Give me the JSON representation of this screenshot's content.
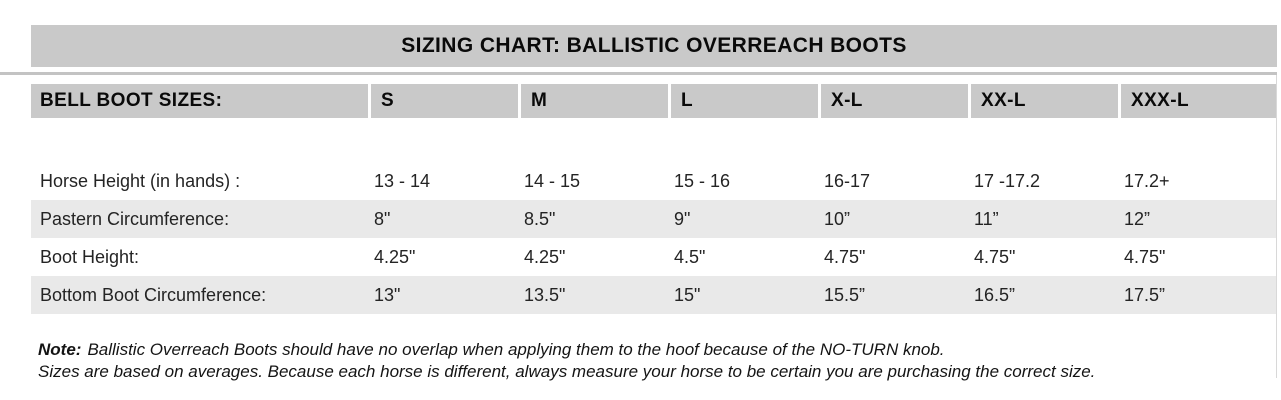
{
  "title": "SIZING CHART: BALLISTIC OVERREACH BOOTS",
  "table": {
    "header_label": "BELL BOOT SIZES:",
    "sizes": [
      "S",
      "M",
      "L",
      "X-L",
      "XX-L",
      "XXX-L"
    ],
    "rows": [
      {
        "label": "Horse Height (in hands) :",
        "values": [
          "13 - 14",
          "14 - 15",
          "15 - 16",
          "16-17",
          "17 -17.2",
          "17.2+"
        ]
      },
      {
        "label": "Pastern Circumference:",
        "values": [
          "8\"",
          "8.5\"",
          "9\"",
          "10”",
          "11”",
          "12”"
        ]
      },
      {
        "label": "Boot Height:",
        "values": [
          "4.25\"",
          "4.25\"",
          "4.5\"",
          "4.75\"",
          "4.75\"",
          "4.75\""
        ]
      },
      {
        "label": "Bottom Boot Circumference:",
        "values": [
          "13\"",
          "13.5\"",
          "15\"",
          "15.5”",
          "16.5”",
          "17.5”"
        ]
      }
    ]
  },
  "note": {
    "label": "Note:",
    "line1": "Ballistic Overreach Boots should have no overlap when applying them to the hoof because of the NO-TURN knob.",
    "line2": "Sizes are based on averages. Because each horse is different, always measure your horse to be certain you are purchasing the correct size."
  },
  "colors": {
    "bar_gray": "#c9c9c9",
    "stripe_gray": "#e9e9e9",
    "divider_gray": "#c3c3c3",
    "text": "#242424"
  },
  "chart_data": {
    "type": "table",
    "title": "SIZING CHART: BALLISTIC OVERREACH BOOTS",
    "columns": [
      "BELL BOOT SIZES:",
      "S",
      "M",
      "L",
      "X-L",
      "XX-L",
      "XXX-L"
    ],
    "rows": [
      [
        "Horse Height (in hands) :",
        "13 - 14",
        "14 - 15",
        "15 - 16",
        "16-17",
        "17 -17.2",
        "17.2+"
      ],
      [
        "Pastern Circumference:",
        "8\"",
        "8.5\"",
        "9\"",
        "10”",
        "11”",
        "12”"
      ],
      [
        "Boot Height:",
        "4.25\"",
        "4.25\"",
        "4.5\"",
        "4.75\"",
        "4.75\"",
        "4.75\""
      ],
      [
        "Bottom Boot Circumference:",
        "13\"",
        "13.5\"",
        "15\"",
        "15.5”",
        "16.5”",
        "17.5”"
      ]
    ]
  }
}
